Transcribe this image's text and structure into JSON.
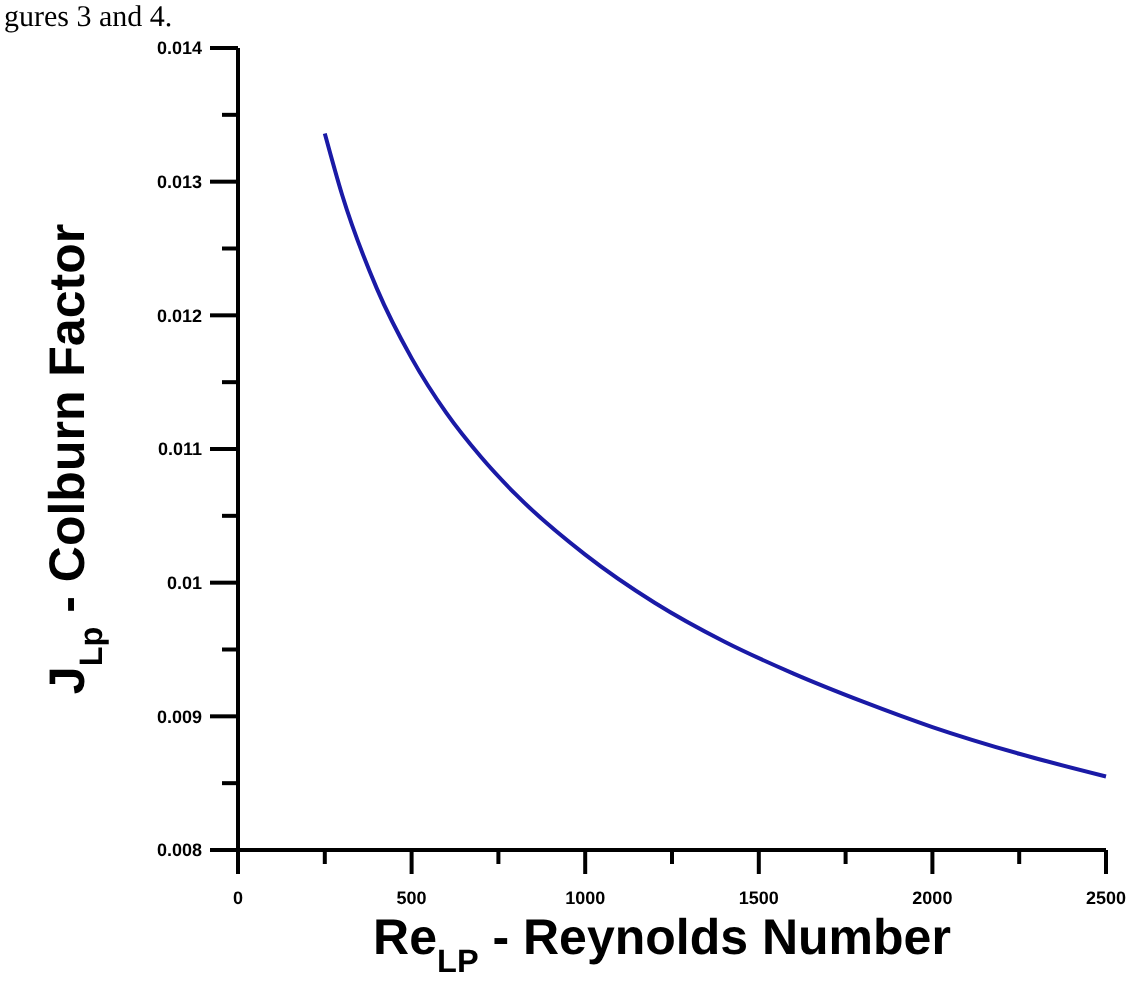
{
  "chart_data": {
    "type": "line",
    "xlabel": "Re$_{LP}$ - Reynolds Number",
    "ylabel": "J$_{Lp}$ - Colburn Factor",
    "annotations": [
      "gures 3 and 4."
    ],
    "x": [
      250,
      300,
      400,
      500,
      600,
      700,
      800,
      1000,
      1200,
      1400,
      1600,
      1800,
      2000,
      2250,
      2500
    ],
    "series": [
      {
        "color": "#1a1aa6",
        "values": [
          0.01336,
          0.0129,
          0.0122,
          0.01168,
          0.01127,
          0.01094,
          0.01066,
          0.01021,
          0.00985,
          0.00956,
          0.00932,
          0.00911,
          0.00892,
          0.00872,
          0.00855
        ]
      }
    ],
    "xlim": [
      0,
      2500
    ],
    "xticks": [
      0,
      {
        "value": 250,
        "label": null
      },
      500,
      {
        "value": 750,
        "label": null
      },
      1000,
      {
        "value": 1250,
        "label": null
      },
      1500,
      {
        "value": 1750,
        "label": null
      },
      2000,
      {
        "value": 2250,
        "label": null
      },
      2500
    ],
    "ylim": [
      0.008,
      0.014
    ],
    "yticks": [
      0.008,
      {
        "value": 0.0085,
        "label": null
      },
      0.009,
      {
        "value": 0.0095,
        "label": null
      },
      0.01,
      {
        "value": 0.0105,
        "label": null
      },
      0.011,
      {
        "value": 0.0115,
        "label": null
      },
      0.012,
      {
        "value": 0.0125,
        "label": null
      },
      0.013,
      {
        "value": 0.0135,
        "label": null
      },
      0.014
    ],
    "grid": false,
    "marker": "none",
    "line_style": "solid"
  }
}
